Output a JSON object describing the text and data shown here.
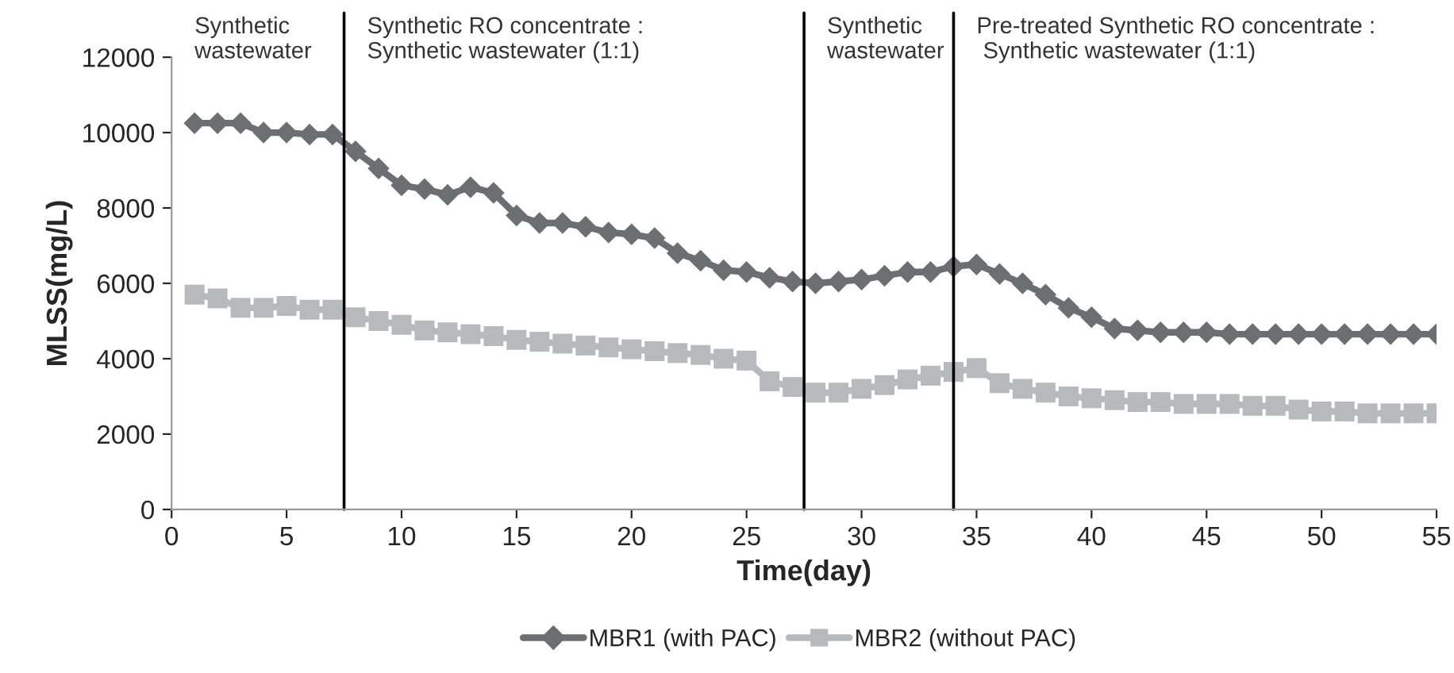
{
  "chart_data": {
    "type": "line",
    "xlabel": "Time(day)",
    "ylabel": "MLSS(mg/L)",
    "x": [
      1,
      2,
      3,
      4,
      5,
      6,
      7,
      8,
      9,
      10,
      11,
      12,
      13,
      14,
      15,
      16,
      17,
      18,
      19,
      20,
      21,
      22,
      23,
      24,
      25,
      26,
      27,
      28,
      29,
      30,
      31,
      32,
      33,
      34,
      35,
      36,
      37,
      38,
      39,
      40,
      41,
      42,
      43,
      44,
      45,
      46,
      47,
      48,
      49,
      50,
      51,
      52,
      53,
      54,
      55
    ],
    "series": [
      {
        "name": "MBR1 (with PAC)",
        "color": "#6d6e71",
        "marker": "diamond",
        "values": [
          10250,
          10250,
          10250,
          10000,
          10000,
          9950,
          9950,
          9500,
          9050,
          8600,
          8500,
          8350,
          8550,
          8400,
          7800,
          7600,
          7600,
          7500,
          7350,
          7300,
          7200,
          6800,
          6600,
          6350,
          6300,
          6150,
          6050,
          6000,
          6050,
          6100,
          6200,
          6300,
          6300,
          6450,
          6500,
          6250,
          6000,
          5700,
          5350,
          5100,
          4800,
          4750,
          4700,
          4700,
          4700,
          4650,
          4650,
          4650,
          4650,
          4650,
          4650,
          4650,
          4650,
          4650,
          4650
        ]
      },
      {
        "name": "MBR2 (without PAC)",
        "color": "#b8b9bd",
        "marker": "square",
        "values": [
          5700,
          5600,
          5350,
          5350,
          5400,
          5300,
          5300,
          5100,
          5000,
          4900,
          4750,
          4700,
          4650,
          4600,
          4500,
          4450,
          4400,
          4350,
          4300,
          4250,
          4200,
          4150,
          4100,
          4000,
          3950,
          3400,
          3250,
          3100,
          3100,
          3200,
          3300,
          3450,
          3550,
          3650,
          3750,
          3350,
          3200,
          3100,
          3000,
          2950,
          2900,
          2850,
          2850,
          2800,
          2800,
          2800,
          2750,
          2750,
          2650,
          2600,
          2600,
          2550,
          2550,
          2550,
          2550
        ]
      }
    ],
    "xlim": [
      0,
      55
    ],
    "xticks": [
      0,
      5,
      10,
      15,
      20,
      25,
      30,
      35,
      40,
      45,
      50,
      55
    ],
    "ylim": [
      0,
      12000
    ],
    "yticks": [
      0,
      2000,
      4000,
      6000,
      8000,
      10000,
      12000
    ],
    "ref_lines": [
      {
        "axis": "x",
        "value": 7.5,
        "color": "#000000"
      },
      {
        "axis": "x",
        "value": 27.5,
        "color": "#000000"
      },
      {
        "axis": "x",
        "value": 34,
        "color": "#000000"
      }
    ],
    "annotations": [
      "Synthetic\nwastewater",
      "Synthetic RO concentrate :\nSynthetic wastewater (1:1)",
      "Synthetic\nwastewater",
      "Pre-treated Synthetic RO concentrate :\n Synthetic wastewater (1:1)"
    ],
    "grid": false,
    "legend": "bottom"
  }
}
